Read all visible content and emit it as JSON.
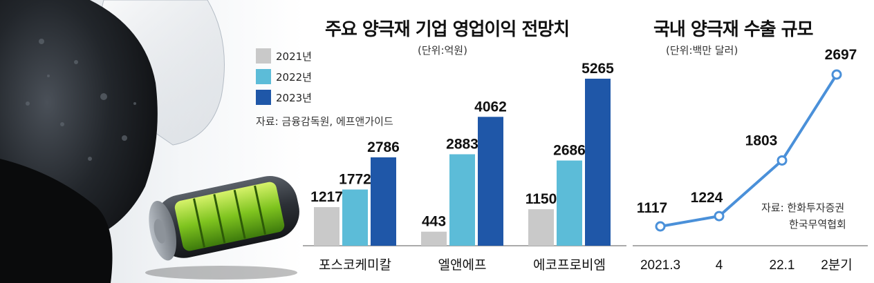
{
  "colors": {
    "y2021": "#c9c9c9",
    "y2022": "#5cbcd8",
    "y2023": "#1f57a8",
    "line": "#4a90d9"
  },
  "left_chart": {
    "title": "주요 양극재 기업 영업이익 전망치",
    "unit": "(단위:억원)",
    "source": "자료: 금융감독원, 에프앤가이드",
    "legend": [
      "2021년",
      "2022년",
      "2023년"
    ]
  },
  "right_chart": {
    "title": "국내 양극재 수출 규모",
    "unit": "(단위:백만 달러)",
    "source_line1": "자료: 한화투자증권",
    "source_line2": "한국무역협회"
  },
  "chart_data": [
    {
      "type": "bar",
      "title": "주요 양극재 기업 영업이익 전망치",
      "unit": "(단위:억원)",
      "categories": [
        "포스코케미칼",
        "엘앤에프",
        "에코프로비엠"
      ],
      "series": [
        {
          "name": "2021년",
          "values": [
            1217,
            443,
            1150
          ]
        },
        {
          "name": "2022년",
          "values": [
            1772,
            2883,
            2686
          ]
        },
        {
          "name": "2023년",
          "values": [
            2786,
            4062,
            5265
          ]
        }
      ],
      "ylim": [
        0,
        5265
      ],
      "legend": "top-left",
      "grid": false
    },
    {
      "type": "line",
      "title": "국내 양극재 수출 규모",
      "unit": "(단위:백만 달러)",
      "categories": [
        "2021.3",
        "4",
        "22.1",
        "2분기"
      ],
      "series": [
        {
          "values": [
            1117,
            1224,
            1803,
            2697
          ]
        }
      ],
      "ylim": [
        1117,
        2697
      ],
      "grid": false
    }
  ]
}
